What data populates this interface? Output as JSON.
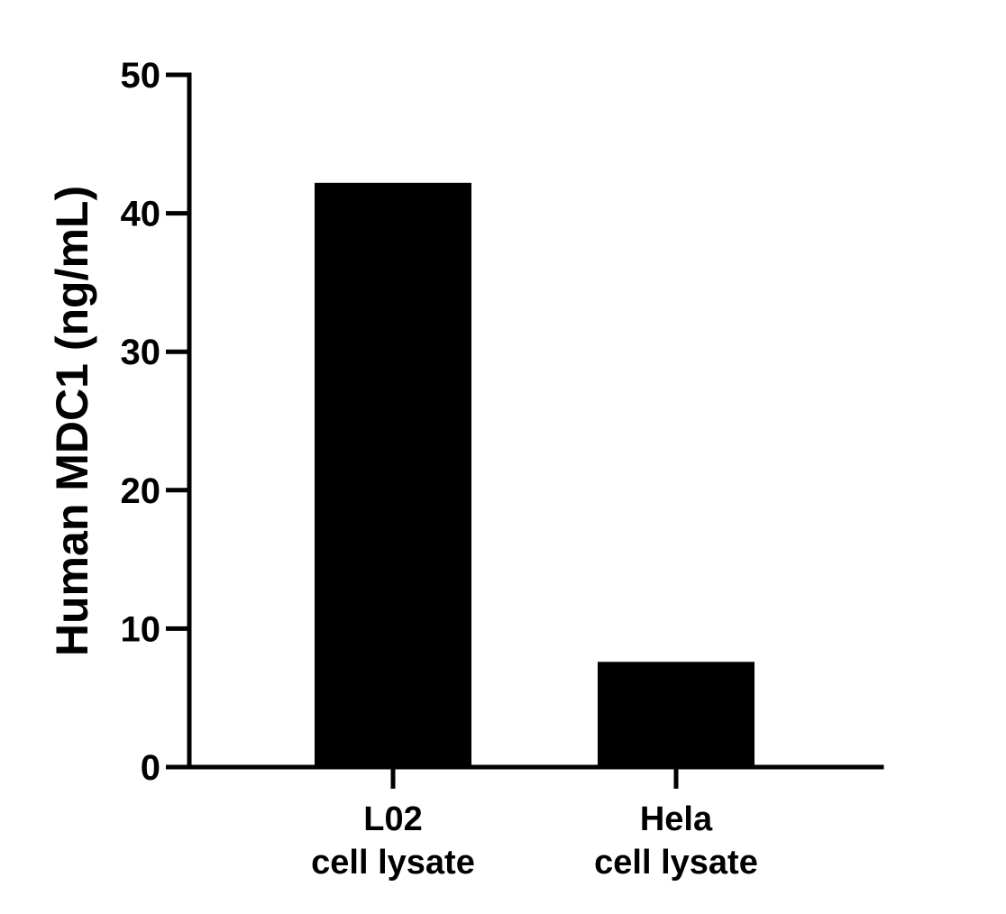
{
  "chart_data": {
    "type": "bar",
    "categories": [
      [
        "L02",
        "cell lysate"
      ],
      [
        "Hela",
        "cell lysate"
      ]
    ],
    "values": [
      42.2,
      7.6
    ],
    "title": "",
    "xlabel": "",
    "ylabel": "Human MDC1 (ng/mL)",
    "ylim": [
      0,
      50
    ],
    "yticks": [
      0,
      10,
      20,
      30,
      40,
      50
    ],
    "grid": false,
    "legend": "none",
    "colors": {
      "bar": "#000000",
      "axis": "#000000",
      "background": "#ffffff"
    }
  }
}
